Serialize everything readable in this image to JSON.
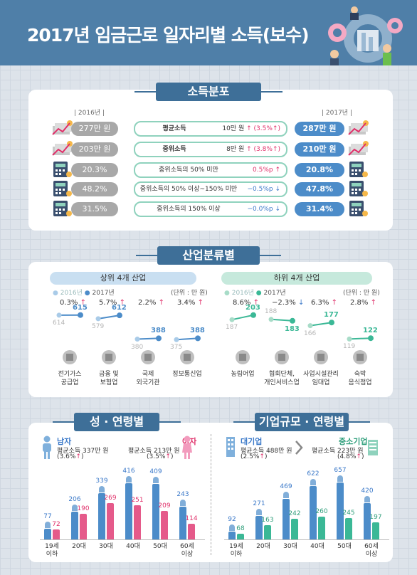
{
  "header": {
    "title": "2017년 임금근로 일자리별 소득(보수)"
  },
  "income": {
    "title": "소득분포",
    "year_left": "| 2016년 |",
    "year_right": "| 2017년 |",
    "rows": [
      {
        "label": "평균소득",
        "change": "10만 원",
        "pct": "(3.5%",
        "v2016": "277만 원",
        "v2017": "287만 원"
      },
      {
        "label": "중위소득",
        "change": "8만 원",
        "pct": "(3.8%",
        "v2016": "203만 원",
        "v2017": "210만 원"
      },
      {
        "label": "중위소득의 50% 미만",
        "change": "0.5%p",
        "pct": "",
        "v2016": "20.3%",
        "v2017": "20.8%"
      },
      {
        "label": "중위소득의 50% 이상~150% 미만",
        "change": "−0.5%p",
        "pct": "",
        "v2016": "48.2%",
        "v2017": "47.8%"
      },
      {
        "label": "중위소득의 150% 이상",
        "change": "−0.0%p",
        "pct": "",
        "v2016": "31.5%",
        "v2017": "31.4%"
      }
    ]
  },
  "industry": {
    "title": "산업분류별",
    "top_title": "상위 4개 산업",
    "bottom_title": "하위 4개 산업",
    "legend_2016": "2016년",
    "legend_2017": "2017년",
    "unit": "(단위 : 만 원)",
    "top": [
      {
        "name": "전기가스\n공급업",
        "pct": "0.3%",
        "v16": "614",
        "v17": "615",
        "n16": 614,
        "n17": 615
      },
      {
        "name": "금융 및\n보험업",
        "pct": "5.7%",
        "v16": "579",
        "v17": "612",
        "n16": 579,
        "n17": 612
      },
      {
        "name": "국제\n외국기관",
        "pct": "2.2%",
        "v16": "380",
        "v17": "388",
        "n16": 380,
        "n17": 388
      },
      {
        "name": "정보통신업",
        "pct": "3.4%",
        "v16": "375",
        "v17": "388",
        "n16": 375,
        "n17": 388
      }
    ],
    "bottom": [
      {
        "name": "농림어업",
        "pct": "8.6%",
        "v16": "187",
        "v17": "203",
        "n16": 187,
        "n17": 203,
        "dir": "up"
      },
      {
        "name": "협회단체,\n개인서비스업",
        "pct": "−2.3%",
        "v16": "188",
        "v17": "183",
        "n16": 188,
        "n17": 183,
        "dir": "down"
      },
      {
        "name": "사업시설관리\n임대업",
        "pct": "6.3%",
        "v16": "166",
        "v17": "177",
        "n16": 166,
        "n17": 177,
        "dir": "up"
      },
      {
        "name": "숙박\n음식점업",
        "pct": "2.8%",
        "v16": "119",
        "v17": "122",
        "n16": 119,
        "n17": 122,
        "dir": "up"
      }
    ]
  },
  "gender": {
    "title": "성 · 연령별",
    "male_label": "남자",
    "male_desc": "평균소득 337만 원",
    "male_pct": "(3.6%",
    "female_label": "여자",
    "female_desc": "평균소득 213만 원",
    "female_pct": "(3.5%",
    "ages": [
      "19세\n이하",
      "20대",
      "30대",
      "40대",
      "50대",
      "60세\n이상"
    ],
    "male": [
      77,
      206,
      339,
      416,
      409,
      243
    ],
    "female": [
      72,
      190,
      269,
      251,
      209,
      114
    ]
  },
  "company": {
    "title": "기업규모 · 연령별",
    "large_label": "대기업",
    "large_desc": "평균소득 488만 원",
    "large_pct": "(2.5%",
    "small_label": "중소기업",
    "small_desc": "평균소득 223만 원",
    "small_pct": "(4.8%",
    "ages": [
      "19세\n이하",
      "20대",
      "30대",
      "40대",
      "50대",
      "60세\n이상"
    ],
    "large": [
      92,
      271,
      469,
      622,
      657,
      420
    ],
    "small": [
      68,
      163,
      242,
      260,
      245,
      197
    ]
  },
  "colors": {
    "blue": "#4c8cc9",
    "pink": "#e55a8a",
    "teal": "#3bb896",
    "gray": "#a8a8a8",
    "navy": "#3e6f98"
  }
}
